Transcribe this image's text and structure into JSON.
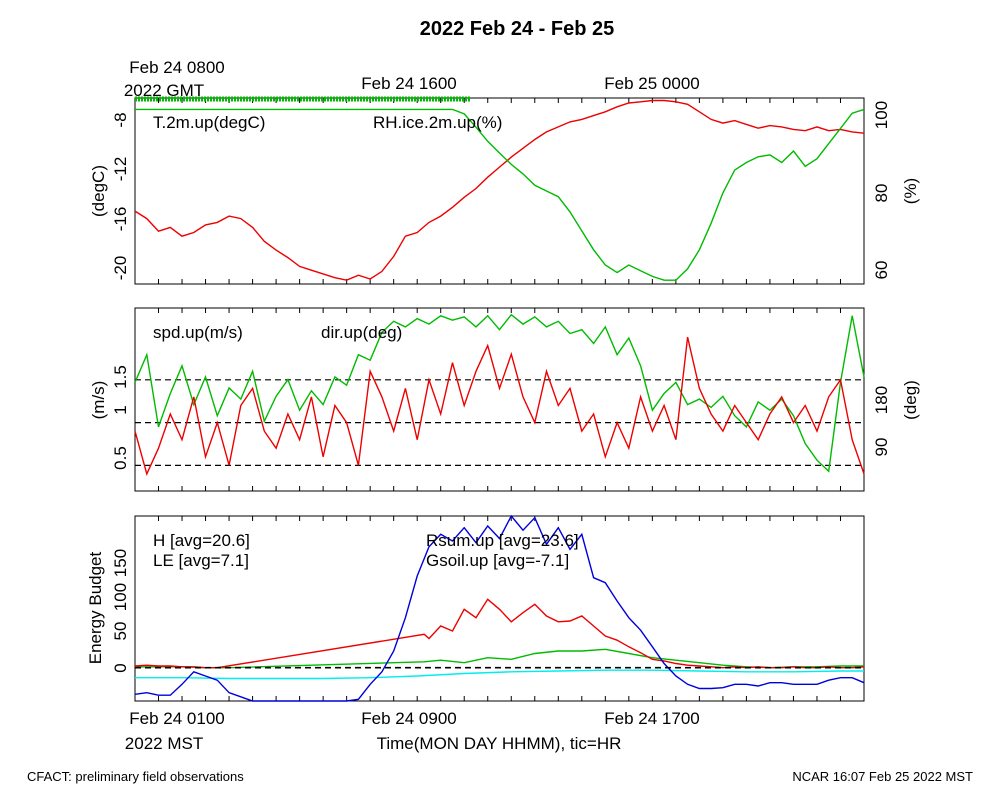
{
  "title": "2022 Feb 24 - Feb 25",
  "top_time_labels": [
    "Feb 24 0800",
    "2022 GMT",
    "Feb 24 1600",
    "Feb 25 0000"
  ],
  "bottom_time_labels": [
    "Feb 24 0100",
    "2022 MST",
    "Feb 24 0900",
    "Feb 24 1700"
  ],
  "xlabel": "Time(MON DAY HHMM), tic=HR",
  "footer_left": "CFACT: preliminary field observations",
  "footer_right": "NCAR 16:07 Feb 25 2022 MST",
  "colors": {
    "red": "#ee0000",
    "green": "#00bb00",
    "blue": "#0000dd",
    "cyan": "#00eeee"
  },
  "chart_data": [
    {
      "type": "line",
      "panel": "temperature-rh",
      "xlim": [
        0,
        31
      ],
      "left_ylabel": "(degC)",
      "left_ylim": [
        -21,
        -6.2
      ],
      "left_ticks": [
        "-8",
        "-12",
        "-16",
        "-20"
      ],
      "right_ylabel": "(%)",
      "right_ylim": [
        56,
        105
      ],
      "right_ticks": [
        "100",
        "80",
        "60"
      ],
      "series": [
        {
          "name": "T.2m.up(degC)",
          "axis": "left",
          "color": "red",
          "x": [
            0,
            0.5,
            1,
            1.5,
            2,
            2.5,
            3,
            3.5,
            4,
            4.5,
            5,
            5.5,
            6,
            6.5,
            7,
            7.5,
            8,
            8.5,
            9,
            9.5,
            10,
            10.5,
            11,
            11.5,
            12,
            12.5,
            13,
            13.5,
            14,
            14.5,
            15,
            15.5,
            16,
            16.5,
            17,
            17.5,
            18,
            18.5,
            19,
            19.5,
            20,
            20.5,
            21,
            21.5,
            22,
            22.5,
            23,
            23.5,
            24,
            24.5,
            25,
            25.5,
            26,
            26.5,
            27,
            27.5,
            28,
            28.5,
            29,
            29.5,
            30,
            30.5,
            31
          ],
          "values": [
            -15.2,
            -15.8,
            -16.8,
            -16.5,
            -17.2,
            -16.9,
            -16.3,
            -16.1,
            -15.6,
            -15.8,
            -16.5,
            -17.6,
            -18.3,
            -18.9,
            -19.6,
            -19.9,
            -20.2,
            -20.5,
            -20.7,
            -20.3,
            -20.6,
            -20.0,
            -18.8,
            -17.2,
            -16.9,
            -16.1,
            -15.6,
            -14.9,
            -14.1,
            -13.4,
            -12.5,
            -11.7,
            -10.9,
            -10.2,
            -9.5,
            -8.9,
            -8.5,
            -8.1,
            -7.9,
            -7.6,
            -7.3,
            -6.9,
            -6.6,
            -6.5,
            -6.4,
            -6.4,
            -6.5,
            -6.7,
            -7.3,
            -7.9,
            -8.2,
            -8.0,
            -8.3,
            -8.6,
            -8.4,
            -8.5,
            -8.7,
            -8.8,
            -8.5,
            -8.8,
            -8.7,
            -8.9,
            -9.0
          ]
        },
        {
          "name": "RH.ice.2m.up(%)",
          "axis": "right",
          "color": "green",
          "x": [
            0,
            1,
            2,
            3,
            4,
            5,
            6,
            7,
            8,
            9,
            10,
            11,
            12,
            12.5,
            13,
            13.5,
            14,
            14.5,
            15,
            15.5,
            16,
            16.5,
            17,
            17.5,
            18,
            18.5,
            19,
            19.5,
            20,
            20.5,
            21,
            21.5,
            22,
            22.5,
            23,
            23.5,
            24,
            24.5,
            25,
            25.5,
            26,
            26.5,
            27,
            27.5,
            28,
            28.5,
            29,
            29.5,
            30,
            30.5,
            31
          ],
          "values": [
            102,
            102,
            102,
            102,
            102,
            102,
            102,
            102,
            102,
            102,
            102,
            102,
            102,
            102,
            102,
            102,
            100.8,
            97.3,
            93.6,
            90.5,
            87.5,
            85,
            82,
            80.5,
            79,
            75,
            70,
            65,
            61,
            59,
            61,
            59.5,
            58,
            57,
            57,
            60,
            65,
            72,
            80,
            86,
            88,
            89.5,
            90,
            88,
            91,
            87,
            89,
            93,
            97,
            101,
            102
          ]
        }
      ]
    },
    {
      "type": "line",
      "panel": "wind",
      "xlim": [
        0,
        31
      ],
      "left_ylabel": "(m/s)",
      "left_ylim": [
        0.2,
        2.34
      ],
      "left_ticks": [
        "1.5",
        "1",
        "0.5"
      ],
      "right_ylabel": "(deg)",
      "right_ylim": [
        4.5,
        334
      ],
      "right_ticks": [
        "180",
        "90"
      ],
      "reference_lines_left": [
        0.5,
        1,
        1.5
      ],
      "series": [
        {
          "name": "spd.up(m/s)",
          "axis": "left",
          "color": "red",
          "x": [
            0,
            0.5,
            1,
            1.5,
            2,
            2.5,
            3,
            3.5,
            4,
            4.5,
            5,
            5.5,
            6,
            6.5,
            7,
            7.5,
            8,
            8.5,
            9,
            9.5,
            10,
            10.5,
            11,
            11.5,
            12,
            12.5,
            13,
            13.5,
            14,
            14.5,
            15,
            15.5,
            16,
            16.5,
            17,
            17.5,
            18,
            18.5,
            19,
            19.5,
            20,
            20.5,
            21,
            21.5,
            22,
            22.5,
            23,
            23.5,
            24,
            24.5,
            25,
            25.5,
            26,
            26.5,
            27,
            27.5,
            28,
            28.5,
            29,
            29.5,
            30,
            30.5,
            31
          ],
          "values": [
            0.9,
            0.4,
            0.7,
            1.1,
            0.8,
            1.3,
            0.6,
            1.0,
            0.5,
            1.2,
            1.4,
            0.9,
            0.7,
            1.1,
            0.8,
            1.3,
            0.6,
            1.2,
            1.0,
            0.5,
            1.6,
            1.3,
            0.9,
            1.4,
            0.8,
            1.5,
            1.1,
            1.7,
            1.2,
            1.6,
            1.9,
            1.4,
            1.8,
            1.3,
            1.0,
            1.6,
            1.2,
            1.4,
            0.9,
            1.1,
            0.6,
            1.0,
            0.7,
            1.3,
            0.9,
            1.2,
            0.8,
            2.0,
            1.4,
            1.1,
            0.9,
            1.2,
            1.0,
            0.8,
            1.1,
            1.3,
            1.0,
            1.2,
            0.9,
            1.3,
            1.5,
            0.8,
            0.4
          ]
        },
        {
          "name": "dir.up(deg)",
          "axis": "right",
          "color": "green",
          "x": [
            0,
            0.5,
            1,
            1.5,
            2,
            2.5,
            3,
            3.5,
            4,
            4.5,
            5,
            5.5,
            6,
            6.5,
            7,
            7.5,
            8,
            8.5,
            9,
            9.5,
            10,
            10.5,
            11,
            11.5,
            12,
            12.5,
            13,
            13.5,
            14,
            14.5,
            15,
            15.5,
            16,
            16.5,
            17,
            17.5,
            18,
            18.5,
            19,
            19.5,
            20,
            20.5,
            21,
            21.5,
            22,
            22.5,
            23,
            23.5,
            24,
            24.5,
            25,
            25.5,
            26,
            26.5,
            27,
            27.5,
            28,
            28.5,
            29,
            29.5,
            30,
            30.5,
            31
          ],
          "values": [
            200,
            250,
            120,
            180,
            230,
            160,
            210,
            140,
            190,
            170,
            220,
            130,
            175,
            205,
            150,
            185,
            160,
            210,
            195,
            250,
            240,
            290,
            310,
            300,
            315,
            305,
            320,
            312,
            318,
            300,
            320,
            295,
            322,
            305,
            318,
            300,
            310,
            288,
            295,
            270,
            300,
            250,
            280,
            230,
            150,
            180,
            200,
            160,
            170,
            155,
            175,
            140,
            120,
            165,
            150,
            170,
            140,
            90,
            60,
            40,
            200,
            320,
            210
          ]
        }
      ]
    },
    {
      "type": "line",
      "panel": "energy-budget",
      "xlim": [
        0,
        31
      ],
      "left_ylabel": "Energy Budget",
      "left_ylim": [
        -40,
        182
      ],
      "left_ticks": [
        "150",
        "100",
        "50",
        "0"
      ],
      "reference_lines_left": [
        0
      ],
      "series": [
        {
          "name": "H [avg=20.6]",
          "label": "H [avg=20.6]",
          "color": "red",
          "x": [
            0,
            0.5,
            1,
            1.5,
            2,
            2.5,
            3,
            3.5,
            12.3,
            12.5,
            13,
            13.5,
            14,
            14.5,
            15,
            15.5,
            16,
            16.5,
            17,
            17.5,
            18,
            18.5,
            19,
            19.5,
            20,
            20.5,
            21,
            21.5,
            22,
            22.5,
            23,
            23.5,
            24,
            24.5,
            25,
            25.5,
            26,
            26.5,
            27,
            27.5,
            28,
            28.5,
            29,
            29.5,
            30,
            30.5,
            31
          ],
          "values": [
            2,
            3,
            2,
            2,
            1,
            1,
            0,
            0,
            40,
            35,
            50,
            44,
            70,
            60,
            82,
            70,
            55,
            66,
            76,
            62,
            55,
            56,
            62,
            50,
            38,
            33,
            25,
            18,
            10,
            8,
            5,
            3,
            2,
            1,
            0,
            1,
            0,
            1,
            0,
            0,
            1,
            0,
            0,
            1,
            0,
            0,
            1
          ]
        },
        {
          "name": "LE [avg=7.1]",
          "label": "LE [avg=7.1]",
          "color": "green",
          "x": [
            0,
            1,
            2,
            3,
            4,
            12.3,
            13,
            14,
            15,
            16,
            17,
            18,
            19,
            20,
            21,
            22,
            23,
            24,
            25,
            26,
            27,
            28,
            29,
            30,
            31
          ],
          "values": [
            1,
            1,
            1,
            0,
            0,
            7,
            9,
            6,
            12,
            10,
            17,
            20,
            20,
            22,
            17,
            12,
            9,
            6,
            3,
            1,
            0,
            1,
            1,
            2,
            2
          ]
        },
        {
          "name": "Rsum.up [avg=23.6]",
          "label": "Rsum.up [avg=23.6]",
          "color": "blue",
          "x": [
            0,
            0.5,
            1,
            1.5,
            2,
            2.5,
            3,
            3.5,
            4,
            4.5,
            5,
            6,
            7,
            8,
            9,
            9.5,
            10,
            10.5,
            11,
            11.5,
            12,
            12.5,
            13,
            13.5,
            14,
            14.5,
            15,
            15.5,
            16,
            16.5,
            17,
            17.5,
            18,
            18.5,
            19,
            19.5,
            20,
            20.5,
            21,
            21.5,
            22,
            22.5,
            23,
            23.5,
            24,
            24.5,
            25,
            25.5,
            26,
            26.5,
            27,
            27.5,
            28,
            28.5,
            29,
            29.5,
            30,
            30.5,
            31
          ],
          "values": [
            -32,
            -30,
            -33,
            -33,
            -20,
            -5,
            -10,
            -15,
            -30,
            -35,
            -40,
            -42,
            -42,
            -40,
            -40,
            -38,
            -20,
            -5,
            20,
            60,
            110,
            145,
            160,
            152,
            168,
            150,
            170,
            155,
            190,
            165,
            180,
            148,
            168,
            142,
            160,
            108,
            102,
            80,
            60,
            45,
            25,
            5,
            -10,
            -20,
            -25,
            -25,
            -24,
            -20,
            -20,
            -22,
            -18,
            -18,
            -20,
            -20,
            -20,
            -15,
            -12,
            -12,
            -18
          ]
        },
        {
          "name": "Gsoil.up [avg=-7.1]",
          "label": "Gsoil.up [avg=-7.1]",
          "color": "cyan",
          "x": [
            0,
            2,
            4,
            6,
            8,
            10,
            12,
            14,
            16,
            18,
            20,
            22,
            24,
            26,
            28,
            30,
            31
          ],
          "values": [
            -12,
            -12,
            -13,
            -13,
            -13,
            -12,
            -10,
            -7,
            -5,
            -4,
            -3,
            -3,
            -4,
            -5,
            -5,
            -4,
            -4
          ]
        }
      ]
    }
  ]
}
